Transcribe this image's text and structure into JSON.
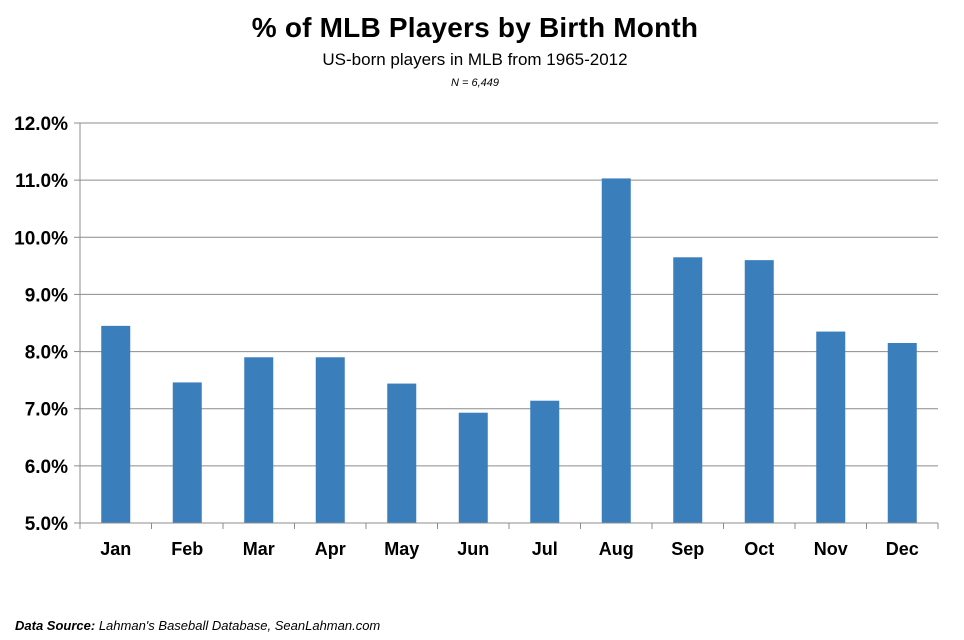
{
  "chart_data": {
    "type": "bar",
    "title": "% of MLB Players by Birth Month",
    "subtitle": "US-born players in MLB from 1965-2012",
    "note": "N = 6,449",
    "categories": [
      "Jan",
      "Feb",
      "Mar",
      "Apr",
      "May",
      "Jun",
      "Jul",
      "Aug",
      "Sep",
      "Oct",
      "Nov",
      "Dec"
    ],
    "values": [
      8.45,
      7.46,
      7.9,
      7.9,
      7.44,
      6.93,
      7.14,
      11.03,
      9.65,
      9.6,
      8.35,
      8.15
    ],
    "ylim": [
      5.0,
      12.0
    ],
    "y_ticks": [
      "5.0%",
      "6.0%",
      "7.0%",
      "8.0%",
      "9.0%",
      "10.0%",
      "11.0%",
      "12.0%"
    ],
    "bar_color": "#3a7ebc",
    "grid": true,
    "legend": "none"
  },
  "source": {
    "label": "Data Source:",
    "text": "Lahman's Baseball Database, SeanLahman.com"
  }
}
